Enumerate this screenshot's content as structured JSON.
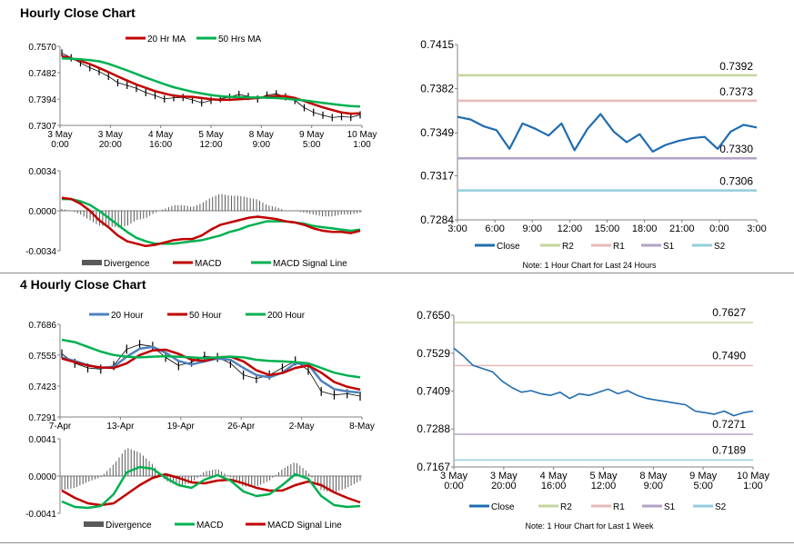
{
  "sections": {
    "hourly_title": "Hourly Close Chart",
    "four_hourly_title": "4 Hourly Close Chart"
  },
  "colors": {
    "ma_fast": "#c00000",
    "ma_mid_green": "#00b050",
    "price": "#000000",
    "blue_close": "#1f6cb0",
    "blue_4h_ma": "#4f81bd",
    "r2": "#c3d69b",
    "r1": "#e6b9b8",
    "s1": "#b3a2c7",
    "s2": "#93cddd",
    "divergence": "#595959"
  },
  "chart_data": [
    {
      "id": "hourly-price",
      "type": "line",
      "legend": [
        "20 Hr MA",
        "50 Hrs MA"
      ],
      "legend_placement": "top",
      "y_ticks": [
        "0.7570",
        "0.7482",
        "0.7394",
        "0.7307"
      ],
      "ylim": [
        0.7307,
        0.757
      ],
      "x_ticks": [
        [
          "3 May",
          "0:00"
        ],
        [
          "3 May",
          "20:00"
        ],
        [
          "4 May",
          "16:00"
        ],
        [
          "5 May",
          "12:00"
        ],
        [
          "8 May",
          "9:00"
        ],
        [
          "9 May",
          "5:00"
        ],
        [
          "10 May",
          "1:00"
        ]
      ],
      "series": [
        {
          "name": "20 Hr MA",
          "color": "#c00000",
          "values": [
            0.7538,
            0.753,
            0.7522,
            0.7511,
            0.7498,
            0.7484,
            0.747,
            0.7456,
            0.7443,
            0.7432,
            0.7421,
            0.7413,
            0.7406,
            0.7403,
            0.7402,
            0.7398,
            0.7394,
            0.7392,
            0.7392,
            0.7394,
            0.7396,
            0.7398,
            0.7402,
            0.7405,
            0.7404,
            0.7398,
            0.7388,
            0.7377,
            0.7367,
            0.7358,
            0.735,
            0.7346,
            0.7347
          ]
        },
        {
          "name": "50 Hrs MA",
          "color": "#00b050",
          "values": [
            0.753,
            0.7529,
            0.7527,
            0.7524,
            0.752,
            0.7512,
            0.7501,
            0.749,
            0.7478,
            0.7466,
            0.7455,
            0.7444,
            0.7434,
            0.7426,
            0.7419,
            0.7413,
            0.7408,
            0.7404,
            0.7402,
            0.7401,
            0.74,
            0.74,
            0.7399,
            0.7398,
            0.7396,
            0.7393,
            0.739,
            0.7386,
            0.7382,
            0.7378,
            0.7374,
            0.7371,
            0.737
          ]
        },
        {
          "name": "Price",
          "color": "#000000",
          "values": [
            0.7548,
            0.7532,
            0.7515,
            0.7499,
            0.7486,
            0.747,
            0.7449,
            0.744,
            0.743,
            0.7416,
            0.7406,
            0.7395,
            0.7399,
            0.74,
            0.7392,
            0.7382,
            0.739,
            0.7396,
            0.7401,
            0.741,
            0.7403,
            0.7395,
            0.7408,
            0.7412,
            0.7402,
            0.739,
            0.7366,
            0.735,
            0.7341,
            0.7333,
            0.7336,
            0.7334,
            0.7342
          ]
        }
      ]
    },
    {
      "id": "hourly-macd",
      "type": "line",
      "legend": [
        "Divergence",
        "MACD",
        "MACD Signal Line"
      ],
      "legend_placement": "bottom",
      "y_ticks": [
        "0.0034",
        "0.0000",
        "-0.0034"
      ],
      "ylim": [
        -0.0034,
        0.0034
      ],
      "series": [
        {
          "name": "MACD",
          "color": "#c00000",
          "values": [
            0.0011,
            0.001,
            0.0006,
            0.0,
            -0.0008,
            -0.0014,
            -0.0021,
            -0.0026,
            -0.0028,
            -0.003,
            -0.0029,
            -0.0027,
            -0.0025,
            -0.0024,
            -0.0024,
            -0.0021,
            -0.0016,
            -0.0012,
            -0.001,
            -0.0008,
            -0.0006,
            -0.0005,
            -0.0006,
            -0.0007,
            -0.0009,
            -0.001,
            -0.0012,
            -0.0015,
            -0.0017,
            -0.0018,
            -0.0018,
            -0.0019,
            -0.0017
          ]
        },
        {
          "name": "MACD Signal Line",
          "color": "#00b050",
          "values": [
            0.001,
            0.001,
            0.0008,
            0.0005,
            0.0,
            -0.0006,
            -0.0012,
            -0.0018,
            -0.0023,
            -0.0026,
            -0.0028,
            -0.0028,
            -0.0028,
            -0.0027,
            -0.0026,
            -0.0025,
            -0.0023,
            -0.0021,
            -0.0018,
            -0.0016,
            -0.0013,
            -0.0011,
            -0.0009,
            -0.0009,
            -0.0009,
            -0.001,
            -0.0011,
            -0.0013,
            -0.0014,
            -0.0015,
            -0.0016,
            -0.0017,
            -0.0016
          ]
        }
      ]
    },
    {
      "id": "hourly-levels",
      "type": "line",
      "legend": [
        "Close",
        "R2",
        "R1",
        "S1",
        "S2"
      ],
      "legend_placement": "bottom",
      "note": "Note: 1 Hour Chart for Last 24 Hours",
      "y_ticks": [
        "0.7415",
        "0.7382",
        "0.7349",
        "0.7317",
        "0.7284"
      ],
      "ylim": [
        0.7284,
        0.7415
      ],
      "x_ticks": [
        "3:00",
        "6:00",
        "9:00",
        "12:00",
        "15:00",
        "18:00",
        "21:00",
        "0:00",
        "3:00"
      ],
      "levels": [
        {
          "name": "R2",
          "value": 0.7392,
          "label": "0.7392",
          "color": "#c3d69b"
        },
        {
          "name": "R1",
          "value": 0.7373,
          "label": "0.7373",
          "color": "#e6b9b8"
        },
        {
          "name": "S1",
          "value": 0.733,
          "label": "0.7330",
          "color": "#b3a2c7"
        },
        {
          "name": "S2",
          "value": 0.7306,
          "label": "0.7306",
          "color": "#93cddd"
        }
      ],
      "series": [
        {
          "name": "Close",
          "color": "#1f6cb0",
          "values": [
            0.7361,
            0.7359,
            0.7354,
            0.7351,
            0.7337,
            0.7356,
            0.7352,
            0.7347,
            0.7356,
            0.7336,
            0.7352,
            0.7363,
            0.735,
            0.7342,
            0.7348,
            0.7335,
            0.734,
            0.7343,
            0.7345,
            0.7346,
            0.7337,
            0.735,
            0.7355,
            0.7353
          ]
        }
      ]
    },
    {
      "id": "four-hourly-price",
      "type": "line",
      "legend": [
        "20 Hour",
        "50 Hour",
        "200 Hour"
      ],
      "legend_placement": "top",
      "y_ticks": [
        "0.7686",
        "0.7555",
        "0.7423",
        "0.7291"
      ],
      "ylim": [
        0.7291,
        0.7686
      ],
      "x_ticks": [
        "7-Apr",
        "13-Apr",
        "19-Apr",
        "26-Apr",
        "2-May",
        "8-May"
      ],
      "series": [
        {
          "name": "20 Hour",
          "color": "#4f81bd",
          "values": [
            0.7545,
            0.753,
            0.7512,
            0.75,
            0.7505,
            0.7548,
            0.7582,
            0.759,
            0.7565,
            0.753,
            0.7515,
            0.7528,
            0.754,
            0.7535,
            0.75,
            0.747,
            0.746,
            0.748,
            0.752,
            0.7515,
            0.7445,
            0.741,
            0.74,
            0.7395
          ]
        },
        {
          "name": "50 Hour",
          "color": "#c00000",
          "values": [
            0.754,
            0.7525,
            0.751,
            0.7502,
            0.75,
            0.752,
            0.7555,
            0.7575,
            0.7578,
            0.756,
            0.7535,
            0.753,
            0.7545,
            0.7548,
            0.7528,
            0.749,
            0.747,
            0.7478,
            0.75,
            0.751,
            0.748,
            0.744,
            0.742,
            0.7408
          ]
        },
        {
          "name": "200 Hour",
          "color": "#00b050",
          "values": [
            0.762,
            0.761,
            0.759,
            0.757,
            0.7555,
            0.7548,
            0.7545,
            0.7548,
            0.755,
            0.7548,
            0.7545,
            0.7542,
            0.7545,
            0.7548,
            0.7545,
            0.7535,
            0.753,
            0.7528,
            0.7525,
            0.752,
            0.75,
            0.748,
            0.7468,
            0.746
          ]
        },
        {
          "name": "Price",
          "color": "#000000",
          "values": [
            0.756,
            0.752,
            0.75,
            0.7495,
            0.751,
            0.758,
            0.76,
            0.7592,
            0.7545,
            0.751,
            0.7525,
            0.755,
            0.7545,
            0.752,
            0.747,
            0.7455,
            0.747,
            0.75,
            0.753,
            0.749,
            0.74,
            0.7385,
            0.739,
            0.738
          ]
        }
      ]
    },
    {
      "id": "four-hourly-macd",
      "type": "line",
      "legend": [
        "Divergence",
        "MACD",
        "MACD Signal Line"
      ],
      "legend_placement": "bottom",
      "y_ticks": [
        "0.0041",
        "0.0000",
        "-0.0041"
      ],
      "ylim": [
        -0.0041,
        0.0041
      ],
      "series": [
        {
          "name": "MACD",
          "color": "#00b050",
          "values": [
            -0.0028,
            -0.0034,
            -0.0035,
            -0.0033,
            -0.002,
            0.0004,
            0.001,
            0.0008,
            -0.0002,
            -0.001,
            -0.0013,
            -0.0004,
            0.0001,
            -0.0005,
            -0.0017,
            -0.0022,
            -0.002,
            -0.001,
            0.0002,
            -0.0003,
            -0.0022,
            -0.0032,
            -0.0034,
            -0.0033
          ]
        },
        {
          "name": "MACD Signal Line",
          "color": "#c00000",
          "values": [
            -0.0016,
            -0.0024,
            -0.003,
            -0.0032,
            -0.003,
            -0.002,
            -0.001,
            -0.0002,
            0.0002,
            -0.0002,
            -0.0007,
            -0.0008,
            -0.0005,
            -0.0004,
            -0.0008,
            -0.0013,
            -0.0016,
            -0.0016,
            -0.001,
            -0.0006,
            -0.001,
            -0.0018,
            -0.0024,
            -0.0029
          ]
        }
      ]
    },
    {
      "id": "four-hourly-levels",
      "type": "line",
      "legend": [
        "Close",
        "R2",
        "R1",
        "S1",
        "S2"
      ],
      "legend_placement": "bottom",
      "note": "Note: 1 Hour Chart for Last 1 Week",
      "y_ticks": [
        "0.7650",
        "0.7529",
        "0.7409",
        "0.7288",
        "0.7167"
      ],
      "ylim": [
        0.7167,
        0.765
      ],
      "x_ticks": [
        [
          "3 May",
          "0:00"
        ],
        [
          "3 May",
          "20:00"
        ],
        [
          "4 May",
          "16:00"
        ],
        [
          "5 May",
          "12:00"
        ],
        [
          "8 May",
          "9:00"
        ],
        [
          "9 May",
          "5:00"
        ],
        [
          "10 May",
          "1:00"
        ]
      ],
      "levels": [
        {
          "name": "R2",
          "value": 0.7627,
          "label": "0.7627",
          "color": "#c3d69b"
        },
        {
          "name": "R1",
          "value": 0.749,
          "label": "0.7490",
          "color": "#e6b9b8"
        },
        {
          "name": "S1",
          "value": 0.7271,
          "label": "0.7271",
          "color": "#b3a2c7"
        },
        {
          "name": "S2",
          "value": 0.7189,
          "label": "0.7189",
          "color": "#93cddd"
        }
      ],
      "series": [
        {
          "name": "Close",
          "color": "#1f6cb0",
          "values": [
            0.7545,
            0.752,
            0.749,
            0.748,
            0.747,
            0.744,
            0.742,
            0.7405,
            0.741,
            0.74,
            0.7395,
            0.7405,
            0.7385,
            0.74,
            0.7395,
            0.7405,
            0.7415,
            0.74,
            0.741,
            0.7395,
            0.7385,
            0.738,
            0.7375,
            0.737,
            0.7365,
            0.7345,
            0.734,
            0.7335,
            0.7345,
            0.733,
            0.734,
            0.7345
          ]
        }
      ]
    }
  ]
}
